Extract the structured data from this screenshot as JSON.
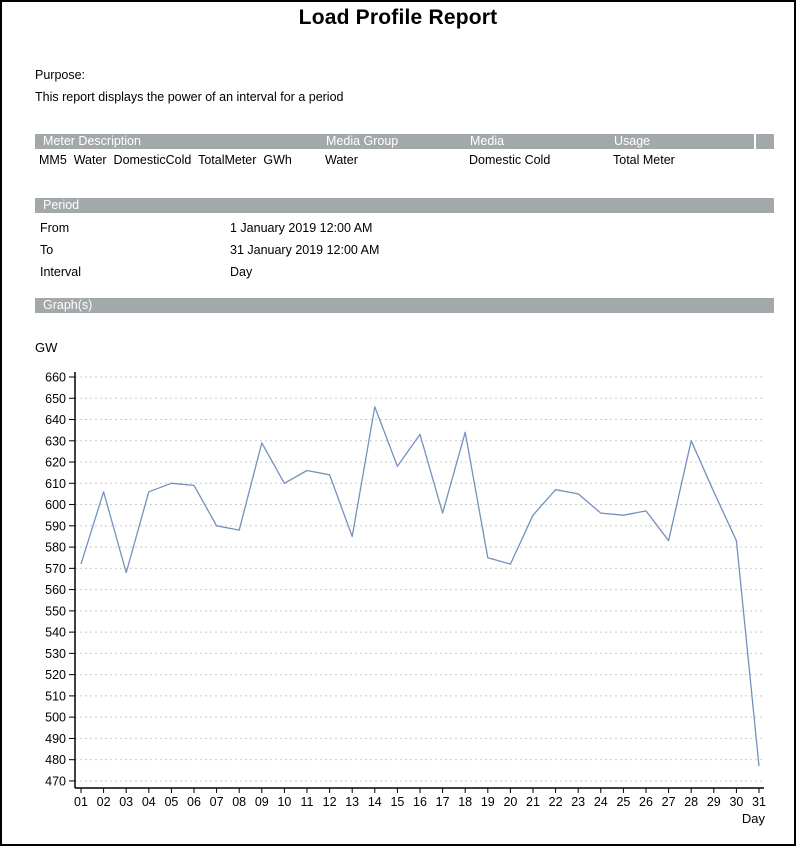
{
  "title": "Load Profile Report",
  "purpose": {
    "label": "Purpose:",
    "text": "This report displays the power of an interval for a period"
  },
  "meter_table": {
    "headers": [
      "Meter Description",
      "Media Group",
      "Media",
      "Usage"
    ],
    "row": {
      "meter_description": "MM5  Water  DomesticCold  TotalMeter  GWh",
      "media_group": "Water",
      "media": "Domestic Cold",
      "usage": "Total Meter"
    }
  },
  "period": {
    "header": "Period",
    "rows": [
      {
        "label": "From",
        "value": "1 January 2019 12:00 AM"
      },
      {
        "label": "To",
        "value": "31 January 2019 12:00 AM"
      },
      {
        "label": "Interval",
        "value": "Day"
      }
    ]
  },
  "graphs": {
    "header": "Graph(s)"
  },
  "chart_data": {
    "type": "line",
    "unit_label": "GW",
    "xlabel": "Day",
    "categories": [
      "01",
      "02",
      "03",
      "04",
      "05",
      "06",
      "07",
      "08",
      "09",
      "10",
      "11",
      "12",
      "13",
      "14",
      "15",
      "16",
      "17",
      "18",
      "19",
      "20",
      "21",
      "22",
      "23",
      "24",
      "25",
      "26",
      "27",
      "28",
      "29",
      "30",
      "31"
    ],
    "values": [
      572,
      606,
      568,
      606,
      610,
      609,
      590,
      588,
      629,
      610,
      616,
      614,
      585,
      646,
      618,
      633,
      596,
      634,
      575,
      572,
      595,
      607,
      605,
      596,
      595,
      597,
      583,
      630,
      606,
      583,
      477
    ],
    "ylim": [
      470,
      660
    ],
    "ytick_step": 10,
    "grid": "horizontal-dashed",
    "legend": "none",
    "line_color": "#7491be",
    "grid_color": "#c9c9c9",
    "axis_color": "#000000"
  },
  "colors": {
    "header_bar": "#a3a8ab",
    "header_bar_text": "#ffffff",
    "page_border": "#000000"
  }
}
